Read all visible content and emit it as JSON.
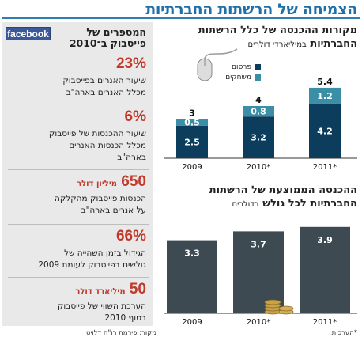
{
  "page_title": "הצמיחה של הרשתות החברתיות",
  "stats_panel": {
    "logo_text": "facebook",
    "title": "המספרים של פייסבוק ב־2010",
    "items": [
      {
        "value": "23%",
        "unit": "",
        "desc": [
          "שיעור האנרים בפייסבוק",
          "מכלל האנרים בארה\"ב"
        ]
      },
      {
        "value": "6%",
        "unit": "",
        "desc": [
          "שיעור ההכנסות של פייסבוק",
          "מכלל הכנסות האנרים",
          "בארה\"ב"
        ]
      },
      {
        "value": "650",
        "unit": "מיליון דולר",
        "desc": [
          "הכנסות פייסבוק מהקלקה",
          "על אנרים בארה\"ב"
        ]
      },
      {
        "value": "66%",
        "unit": "",
        "desc": [
          "הגידול בזמן השהייה של",
          "גולשים בפייסבוק לעומת 2009"
        ]
      },
      {
        "value": "50",
        "unit": "מיליארד דולר",
        "desc": [
          "הערכת השווי של פייסבוק",
          "בסוף 2010"
        ]
      }
    ]
  },
  "chart_data": [
    {
      "type": "bar",
      "title": "מקורות ההכנסה של כלל הרשתות החברתיות",
      "subtitle": "במיליארדי דולרים",
      "categories": [
        "2009",
        "2010*",
        "2011*"
      ],
      "series": [
        {
          "name": "פרסום",
          "values": [
            2.5,
            3.2,
            4.2
          ],
          "color": "#0c3d5c"
        },
        {
          "name": "משחקים",
          "values": [
            0.5,
            0.8,
            1.2
          ],
          "color": "#3a8fa6"
        }
      ],
      "totals": [
        3,
        4,
        5.4
      ],
      "stacked": true,
      "legend": "top-left"
    },
    {
      "type": "bar",
      "title": "ההכנסה הממוצעת של הרשתות החברתיות לכל גולש",
      "subtitle": "בדולרים",
      "categories": [
        "2009",
        "2010*",
        "2011*"
      ],
      "values": [
        3.3,
        3.7,
        3.9
      ],
      "color": "#3d4a52"
    }
  ],
  "footer": {
    "source": "מקור: פירמת רו\"ח דלויט",
    "note": "*הערכות"
  },
  "colors": {
    "accent": "#1f6fa8",
    "stat_red": "#c0392b",
    "panel_bg": "#e9e9e9"
  }
}
